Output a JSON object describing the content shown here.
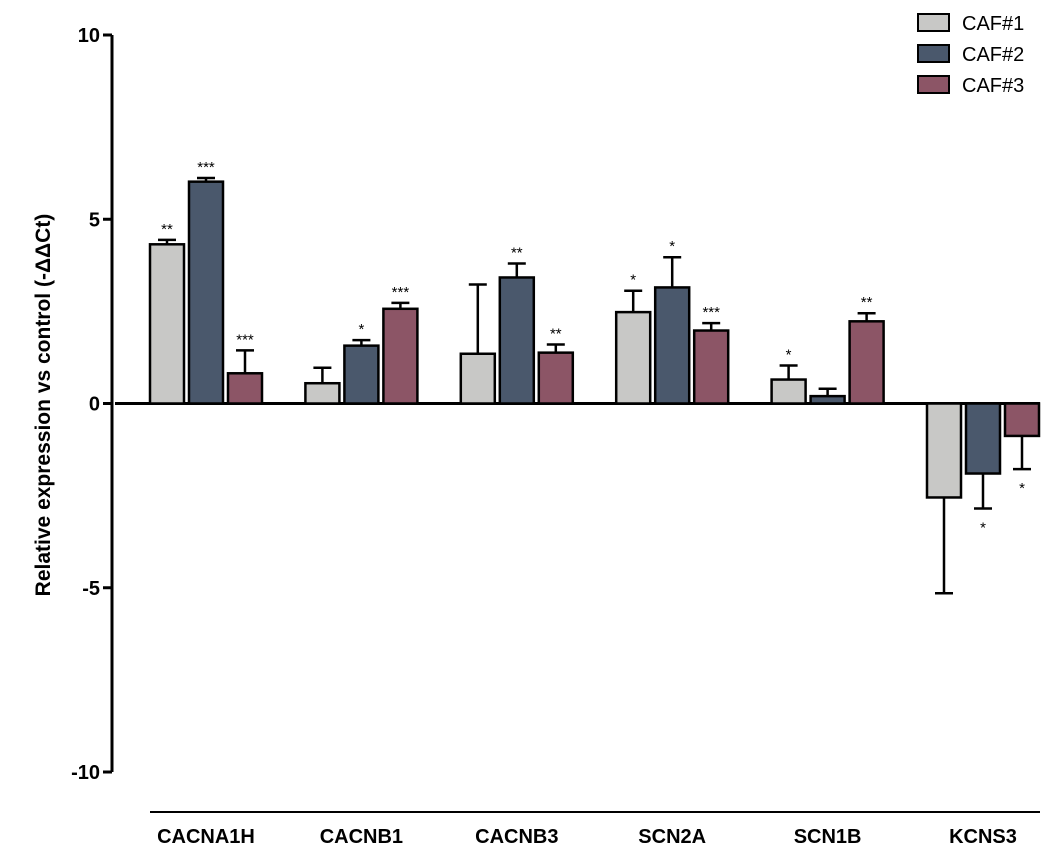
{
  "chart_data": {
    "type": "bar",
    "title": "",
    "xlabel": "",
    "ylabel": "Relative expression vs control  (-ΔΔCt)",
    "ylim": [
      -10,
      10
    ],
    "yticks": [
      10,
      5,
      0,
      -5,
      -10
    ],
    "ytick_labels": [
      "10",
      "5",
      "0",
      "-5",
      "-10"
    ],
    "categories": [
      "CACNA1H",
      "CACNB1",
      "CACNB3",
      "SCN2A",
      "SCN1B",
      "KCNS3"
    ],
    "legend_position": "top-right",
    "grid": false,
    "series": [
      {
        "name": "CAF#1",
        "color": "#c8c8c6",
        "values": [
          4.32,
          0.55,
          1.35,
          2.48,
          0.65,
          -2.55
        ],
        "error": [
          0.12,
          0.42,
          1.88,
          0.58,
          0.38,
          2.6
        ],
        "significance": [
          "**",
          "",
          "",
          "*",
          "*",
          ""
        ]
      },
      {
        "name": "CAF#2",
        "color": "#4a586c",
        "values": [
          6.02,
          1.57,
          3.42,
          3.15,
          0.2,
          -1.9
        ],
        "error": [
          0.1,
          0.15,
          0.38,
          0.82,
          0.2,
          0.95
        ],
        "significance": [
          "***",
          "*",
          "**",
          "*",
          "",
          "*"
        ]
      },
      {
        "name": "CAF#3",
        "color": "#8c5566",
        "values": [
          0.82,
          2.57,
          1.38,
          1.98,
          2.23,
          -0.88
        ],
        "error": [
          0.62,
          0.16,
          0.22,
          0.2,
          0.22,
          0.9
        ],
        "significance": [
          "***",
          "***",
          "**",
          "***",
          "**",
          "*"
        ]
      }
    ]
  }
}
